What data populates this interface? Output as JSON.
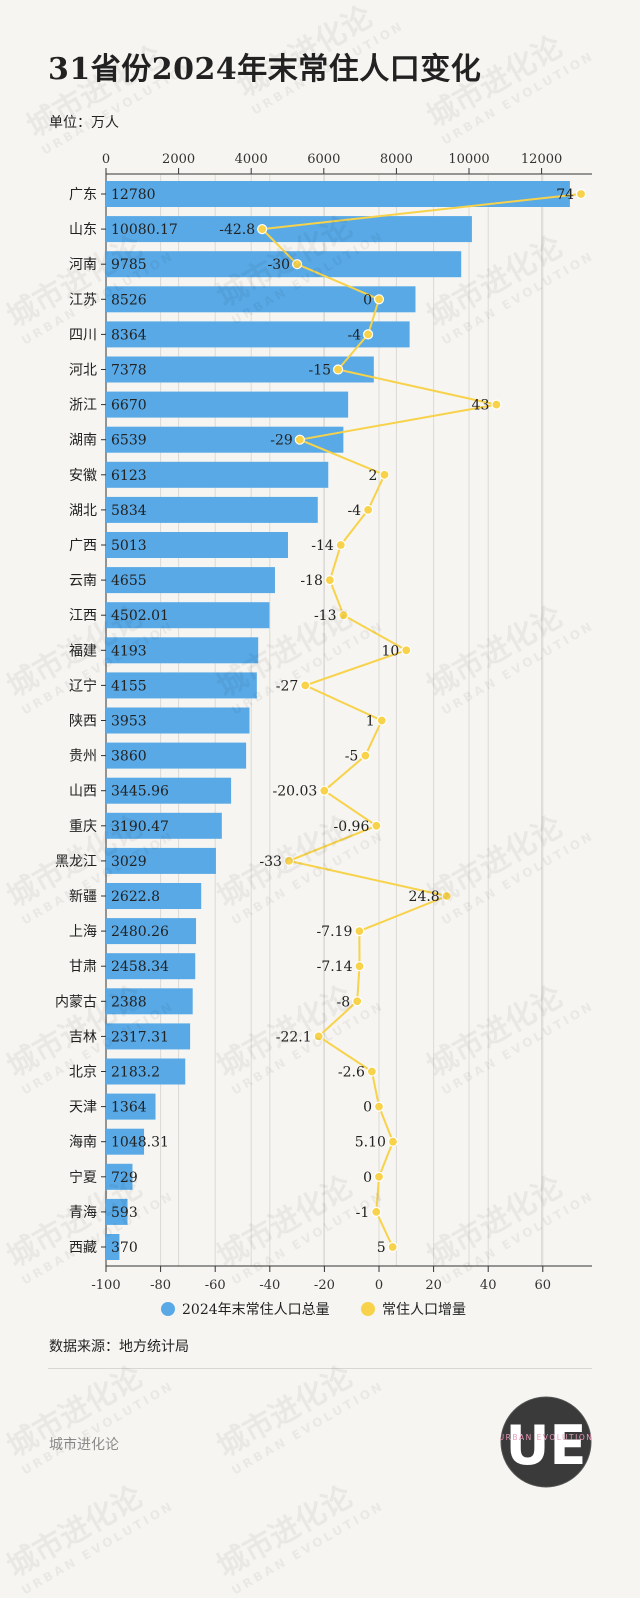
{
  "title": "31省份2024年末常住人口变化",
  "unit_label": "单位：万人",
  "source": "数据来源：地方统计局",
  "footer_brand": "城市进化论",
  "watermark": {
    "cn": "城市进化论",
    "en": "URBAN EVOLUTION"
  },
  "logo": {
    "letters": "UE",
    "text": "URBAN EVOLUTION"
  },
  "chart_data": {
    "type": "bar",
    "orientation": "horizontal",
    "categories": [
      "广东",
      "山东",
      "河南",
      "江苏",
      "四川",
      "河北",
      "浙江",
      "湖南",
      "安徽",
      "湖北",
      "广西",
      "云南",
      "江西",
      "福建",
      "辽宁",
      "陕西",
      "贵州",
      "山西",
      "重庆",
      "黑龙江",
      "新疆",
      "上海",
      "甘肃",
      "内蒙古",
      "吉林",
      "北京",
      "天津",
      "海南",
      "宁夏",
      "青海",
      "西藏"
    ],
    "series": [
      {
        "name": "2024年末常住人口总量",
        "type": "bar",
        "axis": "top",
        "color": "#58a9e6",
        "values": [
          12780,
          10080.17,
          9785,
          8526,
          8364,
          7378,
          6670,
          6539,
          6123,
          5834,
          5013,
          4655,
          4502.01,
          4193,
          4155,
          3953,
          3860,
          3445.96,
          3190.47,
          3029,
          2622.8,
          2480.26,
          2458.34,
          2388,
          2317.31,
          2183.2,
          1364,
          1048.31,
          729,
          593,
          370
        ],
        "labels": [
          "12780",
          "10080.17",
          "9785",
          "8526",
          "8364",
          "7378",
          "6670",
          "6539",
          "6123",
          "5834",
          "5013",
          "4655",
          "4502.01",
          "4193",
          "4155",
          "3953",
          "3860",
          "3445.96",
          "3190.47",
          "3029",
          "2622.8",
          "2480.26",
          "2458.34",
          "2388",
          "2317.31",
          "2183.2",
          "1364",
          "1048.31",
          "729",
          "593",
          "370"
        ]
      },
      {
        "name": "常住人口增量",
        "type": "line",
        "axis": "bottom",
        "color": "#f7d24a",
        "values": [
          74,
          -42.8,
          -30,
          0,
          -4,
          -15,
          43,
          -29,
          2,
          -4,
          -14,
          -18,
          -13,
          10,
          -27,
          1,
          -5,
          -20.03,
          -0.96,
          -33,
          24.8,
          -7.19,
          -7.14,
          -8,
          -22.1,
          -2.6,
          0,
          5.1,
          0,
          -1,
          5
        ],
        "labels": [
          "74",
          "-42.8",
          "-30",
          "0",
          "-4",
          "-15",
          "43",
          "-29",
          "2",
          "-4",
          "-14",
          "-18",
          "-13",
          "10",
          "-27",
          "1",
          "-5",
          "-20.03",
          "-0.96",
          "-33",
          "24.8",
          "-7.19",
          "-7.14",
          "-8",
          "-22.1",
          "-2.6",
          "0",
          "5.10",
          "0",
          "-1",
          "5"
        ]
      }
    ],
    "top_axis": {
      "range": [
        0,
        13500
      ],
      "ticks": [
        "0",
        "2000",
        "4000",
        "6000",
        "8000",
        "10000",
        "12000"
      ]
    },
    "bottom_axis": {
      "range": [
        -100,
        77
      ],
      "ticks": [
        "-100",
        "-80",
        "-60",
        "-40",
        "-20",
        "0",
        "20",
        "40",
        "60"
      ]
    },
    "grid": true,
    "legend_position": "bottom"
  }
}
